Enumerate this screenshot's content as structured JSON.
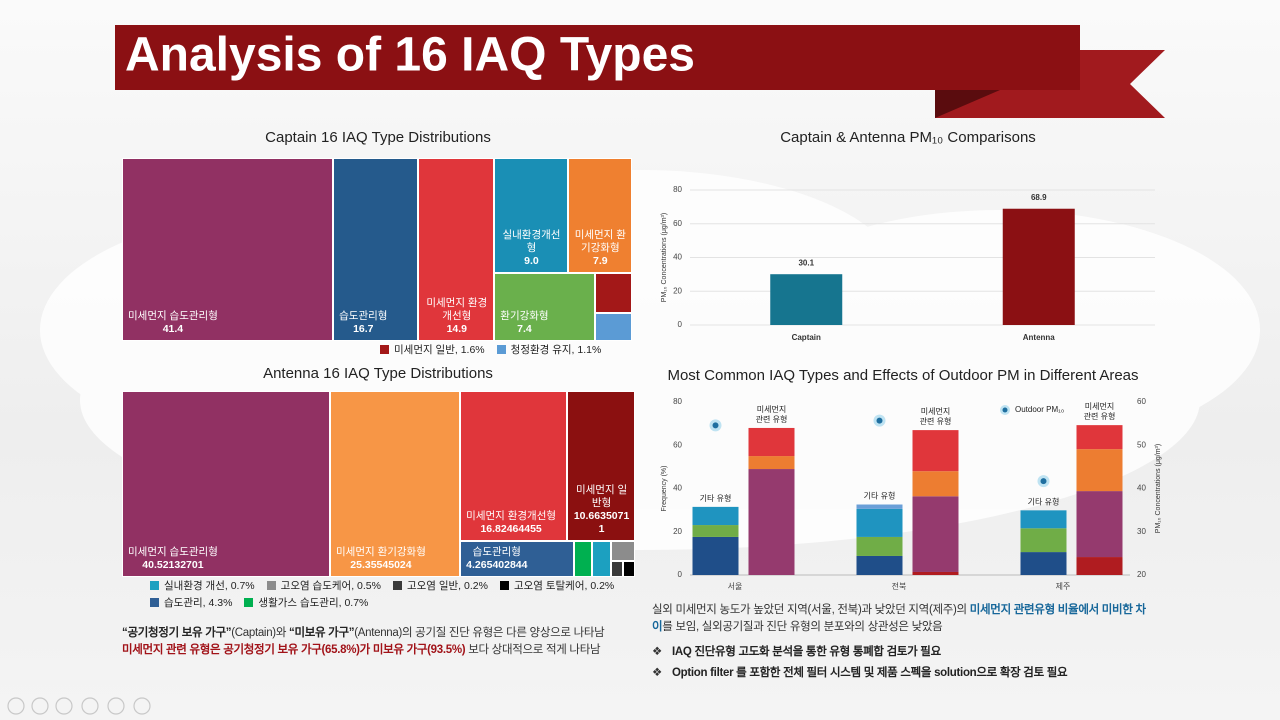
{
  "title": "Analysis of 16 IAQ Types",
  "chart_data": [
    {
      "type": "treemap",
      "title": "Captain 16 IAQ Type Distributions",
      "items": [
        {
          "name": "미세먼지 습도관리형",
          "value": 41.4,
          "value_label": "41.4",
          "color": "#913163"
        },
        {
          "name": "습도관리형",
          "value": 16.7,
          "value_label": "16.7",
          "color": "#255a8c"
        },
        {
          "name": "미세먼지 환경개선형",
          "value": 14.9,
          "value_label": "14.9",
          "color": "#e0363b"
        },
        {
          "name": "실내환경개선형",
          "value": 9.0,
          "value_label": "9.0",
          "color": "#1a8fb5"
        },
        {
          "name": "미세먼지 환기강화형",
          "value": 7.9,
          "value_label": "7.9",
          "color": "#ef8030"
        },
        {
          "name": "환기강화형",
          "value": 7.4,
          "value_label": "7.4",
          "color": "#6ab04c"
        },
        {
          "value": 1.6,
          "legend_label": "미세먼지 일반, 1.6%",
          "color": "#a31818"
        },
        {
          "value": 1.1,
          "legend_label": "청정환경 유지, 1.1%",
          "color": "#5b9bd5"
        }
      ]
    },
    {
      "type": "treemap",
      "title": "Antenna 16 IAQ Type Distributions",
      "items": [
        {
          "name": "미세먼지 습도관리형",
          "value": 40.52132701,
          "color": "#913163"
        },
        {
          "name": "미세먼지 환기강화형",
          "value": 25.35545024,
          "color": "#f79646"
        },
        {
          "name": "미세먼지 환경개선형",
          "value": 16.82464455,
          "color": "#e0363b"
        },
        {
          "name": "미세먼지 일반형",
          "value": 10.66350711,
          "color": "#8b1010"
        },
        {
          "value": 0.7,
          "legend_label": "실내환경 개선, 0.7%",
          "color": "#1ca0c0"
        },
        {
          "value": 0.5,
          "legend_label": "고오염 습도케어, 0.5%",
          "color": "#8c8c8c"
        },
        {
          "value": 0.2,
          "legend_label": "고오염 일반, 0.2%",
          "color": "#3a3a3a"
        },
        {
          "value": 0.2,
          "legend_label": "고오염 토탈케어, 0.2%",
          "color": "#000000"
        },
        {
          "name": "습도관리형",
          "value": 4.265402844,
          "legend_label": "습도관리, 4.3%",
          "color": "#2f5f95"
        },
        {
          "value": 0.7,
          "legend_label": "생활가스 습도관리, 0.7%",
          "color": "#00b050"
        }
      ]
    },
    {
      "type": "bar",
      "title": "Captain & Antenna PM₁₀ Comparisons",
      "y_label": "PM₁₀ Concentrations (μg/m³)",
      "categories": [
        "Captain",
        "Antenna"
      ],
      "values": [
        30.1,
        68.9
      ],
      "colors": [
        "#16758f",
        "#8b1013"
      ],
      "ylim": [
        0,
        80
      ],
      "yticks": [
        0,
        20,
        40,
        60,
        80
      ],
      "grid": true
    },
    {
      "type": "stacked_bar",
      "title": "Most Common IAQ Types and Effects of Outdoor PM in Different Areas",
      "y_label": "Frequency (%)",
      "y2_label": "PM₁₀ Concentrations (μg/m³)",
      "categories": [
        "서울",
        "전북",
        "제주"
      ],
      "bar_labels": [
        [
          "기타 유형"
        ],
        [
          "미세먼지",
          "관련 유형"
        ]
      ],
      "ylim": [
        0,
        80
      ],
      "yticks": [
        0,
        20,
        40,
        60,
        80
      ],
      "y2lim": [
        20,
        60
      ],
      "y2ticks": [
        20,
        30,
        40,
        50,
        60
      ],
      "series": [
        {
          "stack": 0,
          "color": "#1f4e89",
          "values": [
            17.6,
            8.8,
            10.6
          ]
        },
        {
          "stack": 0,
          "color": "#70ad47",
          "values": [
            5.5,
            8.8,
            11.0
          ]
        },
        {
          "stack": 0,
          "color": "#1f94c0",
          "values": [
            8.4,
            13.0,
            8.3
          ]
        },
        {
          "stack": 0,
          "color": "#6a9fd8",
          "values": [
            null,
            2.0,
            null
          ]
        },
        {
          "stack": 1,
          "color": "#b01c20",
          "values": [
            null,
            1.4,
            8.3
          ]
        },
        {
          "stack": 1,
          "color": "#953a6e",
          "values": [
            49.0,
            35.0,
            30.5
          ]
        },
        {
          "stack": 1,
          "color": "#ed7d31",
          "values": [
            6.0,
            11.6,
            19.4
          ]
        },
        {
          "stack": 1,
          "color": "#e0363b",
          "values": [
            13.0,
            19.0,
            11.1
          ]
        },
        {
          "name": "Outdoor PM₁₀",
          "type": "scatter",
          "axis": "y2",
          "color": "#1f6fa0",
          "values": [
            54.6,
            55.7,
            41.7
          ]
        }
      ]
    }
  ],
  "notes": {
    "left": [
      "“공기청정기 보유 가구”",
      "(Captain)와 ",
      "“미보유 가구”",
      "(Antenna)의 공기질 진단 유형은 다른 양상으로 나타남",
      "미세먼지 관련 유형은 공기청정기 보유 가구(65.8%)가 미보유 가구(93.5%)",
      " 보다 상대적으로 적게 나타남"
    ],
    "right": [
      "실외 미세먼지 농도가 높았던 지역(서울, 전북)과 낮았던 지역(제주)의 ",
      "미세먼지 관련유형 비율에서 미비한 차이",
      "를 보임, 실외공기질과 진단 유형의 분포와의 상관성은 낮았음"
    ],
    "bullets": [
      "IAQ 진단유형 고도화 분석을 통한 유형 통폐합 검토가 필요",
      "Option filter 를 포함한 전체 필터 시스템 및 제품 스펙을 solution으로 확장 검토 필요"
    ]
  }
}
